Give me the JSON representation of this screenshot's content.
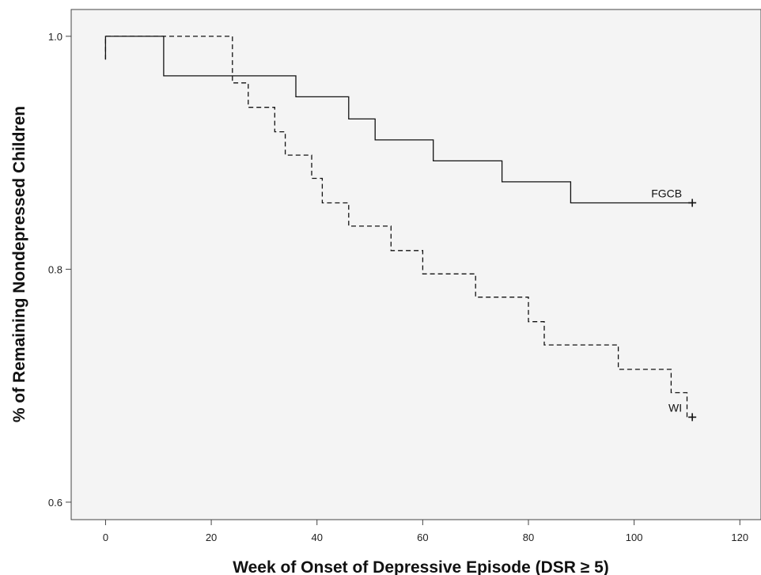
{
  "chart_data": {
    "type": "line",
    "step": true,
    "title": "",
    "xlabel": "Week of Onset of Depressive Episode (DSR ≥ 5)",
    "ylabel": "% of Remaining Nondepressed Children",
    "xlim": [
      -6.5,
      124
    ],
    "ylim": [
      0.585,
      1.023
    ],
    "xticks": [
      0,
      20,
      40,
      60,
      80,
      100,
      120
    ],
    "yticks": [
      0.6,
      0.8,
      1.0
    ],
    "xtick_labels": [
      "0",
      "20",
      "40",
      "60",
      "80",
      "100",
      "120"
    ],
    "ytick_labels": [
      "0.6",
      "0.8",
      "1.0"
    ],
    "grid": false,
    "legend": "none",
    "plot_background": "#f4f4f4",
    "series": [
      {
        "name": "FGCB",
        "line_style": "solid",
        "color": "#111111",
        "censored_at": [
          111,
          0.857
        ],
        "points": [
          [
            0,
            0.98
          ],
          [
            0,
            1.0
          ],
          [
            11,
            1.0
          ],
          [
            11,
            0.966
          ],
          [
            36,
            0.966
          ],
          [
            36,
            0.948
          ],
          [
            46,
            0.948
          ],
          [
            46,
            0.929
          ],
          [
            51,
            0.929
          ],
          [
            51,
            0.911
          ],
          [
            62,
            0.911
          ],
          [
            62,
            0.893
          ],
          [
            75,
            0.893
          ],
          [
            75,
            0.875
          ],
          [
            88,
            0.875
          ],
          [
            88,
            0.857
          ],
          [
            111,
            0.857
          ]
        ]
      },
      {
        "name": "WI",
        "line_style": "dashed",
        "color": "#111111",
        "censored_at": [
          111,
          0.673
        ],
        "points": [
          [
            0,
            0.98
          ],
          [
            0,
            1.0
          ],
          [
            24,
            1.0
          ],
          [
            24,
            0.96
          ],
          [
            27,
            0.96
          ],
          [
            27,
            0.939
          ],
          [
            32,
            0.939
          ],
          [
            32,
            0.918
          ],
          [
            34,
            0.918
          ],
          [
            34,
            0.898
          ],
          [
            39,
            0.898
          ],
          [
            39,
            0.878
          ],
          [
            41,
            0.878
          ],
          [
            41,
            0.857
          ],
          [
            46,
            0.857
          ],
          [
            46,
            0.837
          ],
          [
            54,
            0.837
          ],
          [
            54,
            0.816
          ],
          [
            60,
            0.816
          ],
          [
            60,
            0.796
          ],
          [
            70,
            0.796
          ],
          [
            70,
            0.776
          ],
          [
            80,
            0.776
          ],
          [
            80,
            0.755
          ],
          [
            83,
            0.755
          ],
          [
            83,
            0.735
          ],
          [
            97,
            0.735
          ],
          [
            97,
            0.714
          ],
          [
            107,
            0.714
          ],
          [
            107,
            0.694
          ],
          [
            110,
            0.694
          ],
          [
            110,
            0.673
          ],
          [
            111,
            0.673
          ]
        ]
      }
    ]
  }
}
